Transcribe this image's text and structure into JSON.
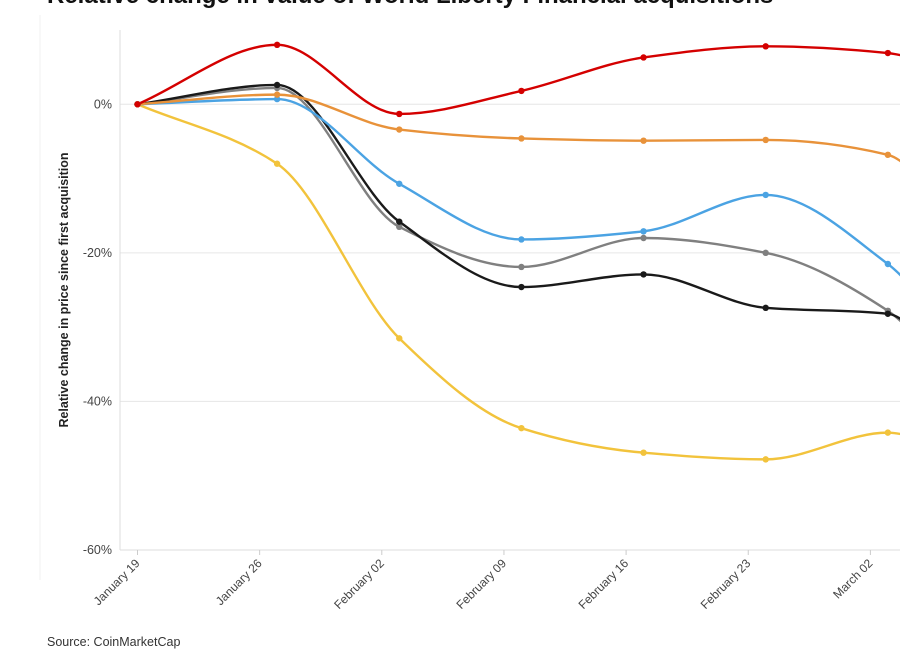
{
  "chart_data": {
    "type": "line",
    "title": "Relative change in value of World Liberty Financial acquisitions",
    "xlabel": "",
    "ylabel": "Relative change in price since first acquisition",
    "x": [
      "2025-01-19",
      "2025-01-27",
      "2025-02-03",
      "2025-02-10",
      "2025-02-17",
      "2025-02-24",
      "2025-03-03",
      "2025-03-05"
    ],
    "xticks": [
      "January 19",
      "January 26",
      "February 02",
      "February 09",
      "February 16",
      "February 23",
      "March 02"
    ],
    "yticks": [
      "0%",
      "-20%",
      "-40%",
      "-60%"
    ],
    "ylim": [
      -60,
      10
    ],
    "grid": true,
    "series": [
      {
        "color": "#d40000",
        "values": [
          0,
          8,
          -1.3,
          1.8,
          6.3,
          7.8,
          6.9,
          5.9
        ]
      },
      {
        "color": "#e8923a",
        "values": [
          0,
          1.3,
          -3.4,
          -4.6,
          -4.9,
          -4.8,
          -6.8,
          -10
        ]
      },
      {
        "color": "#4ba3e3",
        "values": [
          0,
          0.7,
          -10.7,
          -18.2,
          -17.1,
          -12.2,
          -21.5,
          -26
        ]
      },
      {
        "color": "#808080",
        "values": [
          0,
          2.2,
          -16.5,
          -21.9,
          -18,
          -20,
          -27.8,
          -32
        ]
      },
      {
        "color": "#1a1a1a",
        "values": [
          0,
          2.6,
          -15.8,
          -24.6,
          -22.9,
          -27.4,
          -28.2,
          -31
        ]
      },
      {
        "color": "#f2c33c",
        "values": [
          0,
          -8,
          -31.5,
          -43.6,
          -46.9,
          -47.8,
          -44.2,
          -45
        ]
      }
    ]
  },
  "source": "Source: CoinMarketCap"
}
